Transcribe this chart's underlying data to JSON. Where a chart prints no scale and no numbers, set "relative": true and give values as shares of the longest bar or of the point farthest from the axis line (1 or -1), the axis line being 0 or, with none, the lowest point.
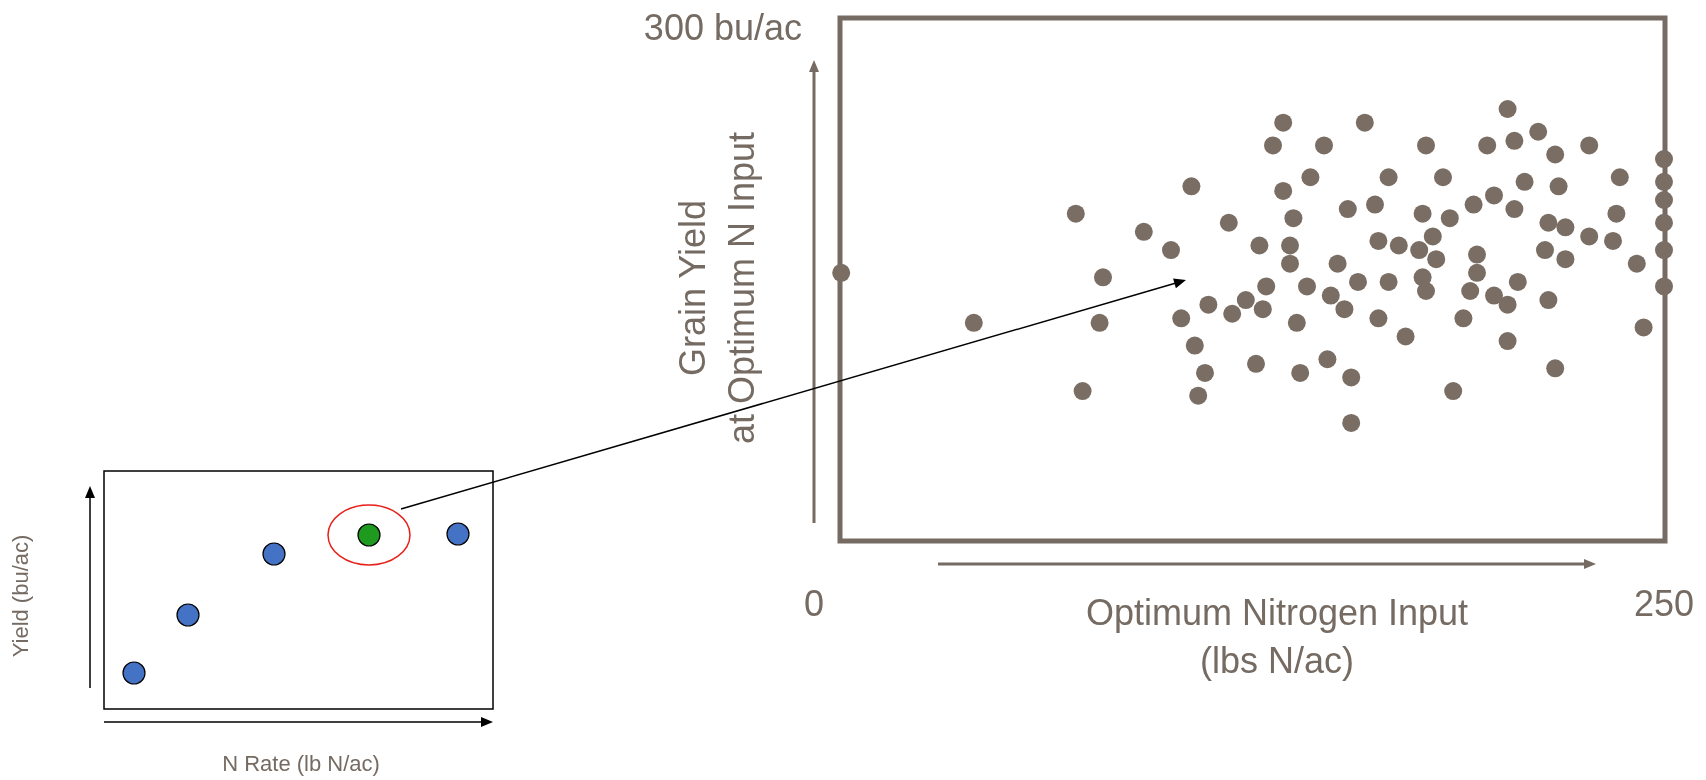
{
  "chart_data": [
    {
      "type": "other",
      "xlabel": "N Rate (lb N/ac)",
      "ylabel": "Yield (bu/ac)"
    },
    {
      "type": "scatter",
      "xlabel": "Optimum Nitrogen Input\n(lbs N/ac)",
      "ylabel": "Grain Yield\nat Optimum N Input",
      "xlim": [
        0,
        250
      ],
      "xticks": [
        0,
        250
      ],
      "relative": true,
      "annotations": [
        "300 bu/ac"
      ],
      "marker": "circle",
      "series": [
        {
          "color": "#7a6e64",
          "x": [
            8,
            47,
            77,
            79,
            84,
            85,
            97,
            105,
            108,
            111,
            112,
            115,
            113,
            116,
            122,
            123,
            127,
            130,
            131,
            133,
            132,
            135,
            138,
            138,
            140,
            140,
            141,
            142,
            143,
            145,
            146,
            150,
            151,
            152,
            154,
            156,
            157,
            158,
            158,
            160,
            162,
            165,
            166,
            166,
            169,
            169,
            172,
            174,
            178,
            179,
            179,
            180,
            180,
            182,
            183,
            185,
            187,
            188,
            191,
            193,
            194,
            195,
            195,
            198,
            200,
            200,
            204,
            204,
            204,
            206,
            206,
            207,
            209,
            213,
            215,
            216,
            216,
            218,
            218,
            219,
            221,
            221,
            228,
            228,
            235,
            236,
            237,
            242,
            244,
            250,
            250,
            250,
            250,
            250,
            250
          ],
          "values": [
            0.64,
            0.53,
            0.77,
            0.38,
            0.53,
            0.63,
            0.73,
            0.69,
            0.54,
            0.83,
            0.48,
            0.42,
            0.37,
            0.57,
            0.75,
            0.55,
            0.58,
            0.44,
            0.7,
            0.61,
            0.56,
            0.92,
            0.97,
            0.82,
            0.66,
            0.7,
            0.76,
            0.53,
            0.42,
            0.61,
            0.85,
            0.92,
            0.45,
            0.59,
            0.66,
            0.56,
            0.78,
            0.41,
            0.31,
            0.62,
            0.97,
            0.79,
            0.71,
            0.54,
            0.85,
            0.62,
            0.7,
            0.5,
            0.69,
            0.77,
            0.63,
            0.6,
            0.92,
            0.72,
            0.67,
            0.85,
            0.76,
            0.38,
            0.54,
            0.6,
            0.79,
            0.68,
            0.64,
            0.92,
            0.59,
            0.81,
            0.57,
            1,
            0.49,
            0.93,
            0.78,
            0.62,
            0.84,
            0.95,
            0.69,
            0.58,
            0.75,
            0.9,
            0.43,
            0.83,
            0.74,
            0.67,
            0.72,
            0.92,
            0.71,
            0.77,
            0.85,
            0.66,
            0.52,
            0.89,
            0.84,
            0.8,
            0.75,
            0.69,
            0.61
          ]
        }
      ]
    }
  ]
}
